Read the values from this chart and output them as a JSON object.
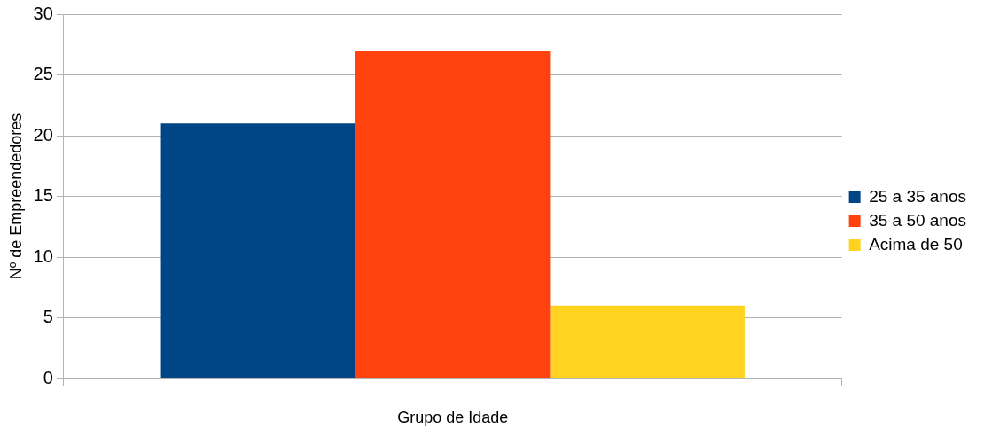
{
  "chart_data": {
    "type": "bar",
    "xlabel": "Grupo de Idade",
    "ylabel": "Nº de Empreendedores",
    "categories": [
      null
    ],
    "series": [
      {
        "name": "25 a 35 anos",
        "color": "#004586",
        "values": [
          21
        ]
      },
      {
        "name": "35 a 50 anos",
        "color": "#ff420e",
        "values": [
          27
        ]
      },
      {
        "name": "Acima de 50",
        "color": "#ffd320",
        "values": [
          6
        ]
      }
    ],
    "ylim": [
      0,
      30
    ],
    "yticks": [
      0,
      5,
      10,
      15,
      20,
      25,
      30
    ],
    "grid": "y",
    "legend": "right"
  }
}
